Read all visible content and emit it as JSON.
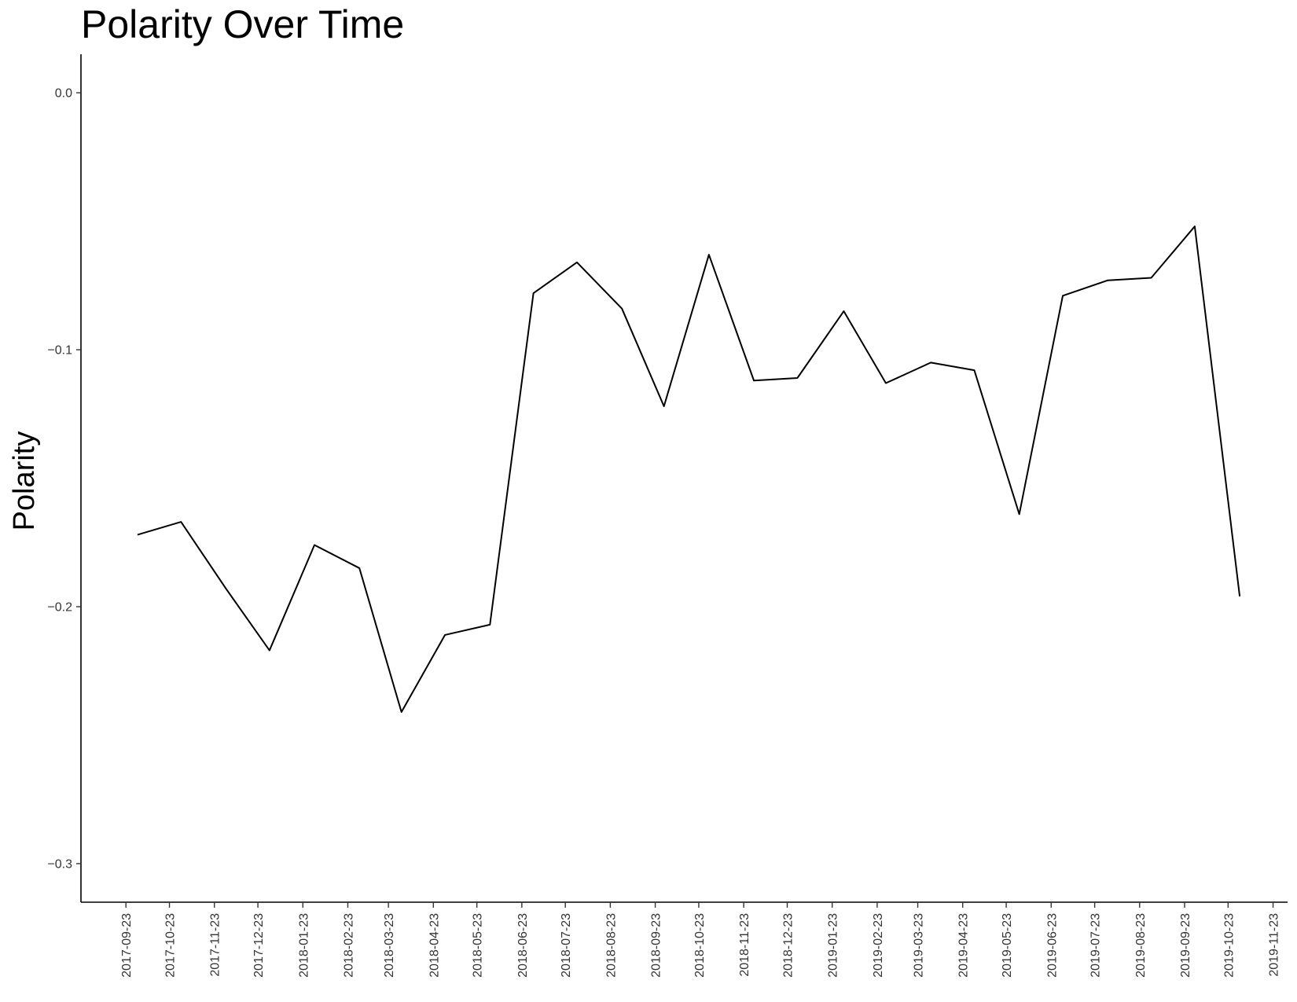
{
  "chart_data": {
    "type": "line",
    "title": "Polarity Over Time",
    "xlabel": "",
    "ylabel": "Polarity",
    "x_ticks": [
      "2017-09-23",
      "2017-10-23",
      "2017-11-23",
      "2017-12-23",
      "2018-01-23",
      "2018-02-23",
      "2018-03-23",
      "2018-04-23",
      "2018-05-23",
      "2018-06-23",
      "2018-07-23",
      "2018-08-23",
      "2018-09-23",
      "2018-10-23",
      "2018-11-23",
      "2018-12-23",
      "2019-01-23",
      "2019-02-23",
      "2019-03-23",
      "2019-04-23",
      "2019-05-23",
      "2019-06-23",
      "2019-07-23",
      "2019-08-23",
      "2019-09-23",
      "2019-10-23",
      "2019-11-23"
    ],
    "y_ticks": [
      0.0,
      -0.1,
      -0.2,
      -0.3
    ],
    "y_tick_labels": [
      "0.0",
      "−0.1",
      "−0.2",
      "−0.3"
    ],
    "ylim": [
      -0.315,
      0.015
    ],
    "xlim": [
      "2017-08-23",
      "2019-12-03"
    ],
    "grid": false,
    "series": [
      {
        "color": "#000000",
        "points": [
          {
            "x": "2017-10-01",
            "y": -0.172
          },
          {
            "x": "2017-10-31",
            "y": -0.167
          },
          {
            "x": "2017-12-01",
            "y": -0.193
          },
          {
            "x": "2017-12-31",
            "y": -0.217
          },
          {
            "x": "2018-01-31",
            "y": -0.176
          },
          {
            "x": "2018-03-03",
            "y": -0.185
          },
          {
            "x": "2018-04-01",
            "y": -0.241
          },
          {
            "x": "2018-05-01",
            "y": -0.211
          },
          {
            "x": "2018-06-01",
            "y": -0.207
          },
          {
            "x": "2018-07-01",
            "y": -0.078
          },
          {
            "x": "2018-07-31",
            "y": -0.066
          },
          {
            "x": "2018-08-31",
            "y": -0.084
          },
          {
            "x": "2018-09-29",
            "y": -0.122
          },
          {
            "x": "2018-10-30",
            "y": -0.063
          },
          {
            "x": "2018-11-30",
            "y": -0.112
          },
          {
            "x": "2018-12-30",
            "y": -0.111
          },
          {
            "x": "2019-01-31",
            "y": -0.085
          },
          {
            "x": "2019-03-01",
            "y": -0.113
          },
          {
            "x": "2019-04-01",
            "y": -0.105
          },
          {
            "x": "2019-05-01",
            "y": -0.108
          },
          {
            "x": "2019-06-01",
            "y": -0.164
          },
          {
            "x": "2019-07-01",
            "y": -0.079
          },
          {
            "x": "2019-08-01",
            "y": -0.073
          },
          {
            "x": "2019-08-31",
            "y": -0.072
          },
          {
            "x": "2019-09-30",
            "y": -0.052
          },
          {
            "x": "2019-10-31",
            "y": -0.196
          }
        ]
      }
    ]
  }
}
